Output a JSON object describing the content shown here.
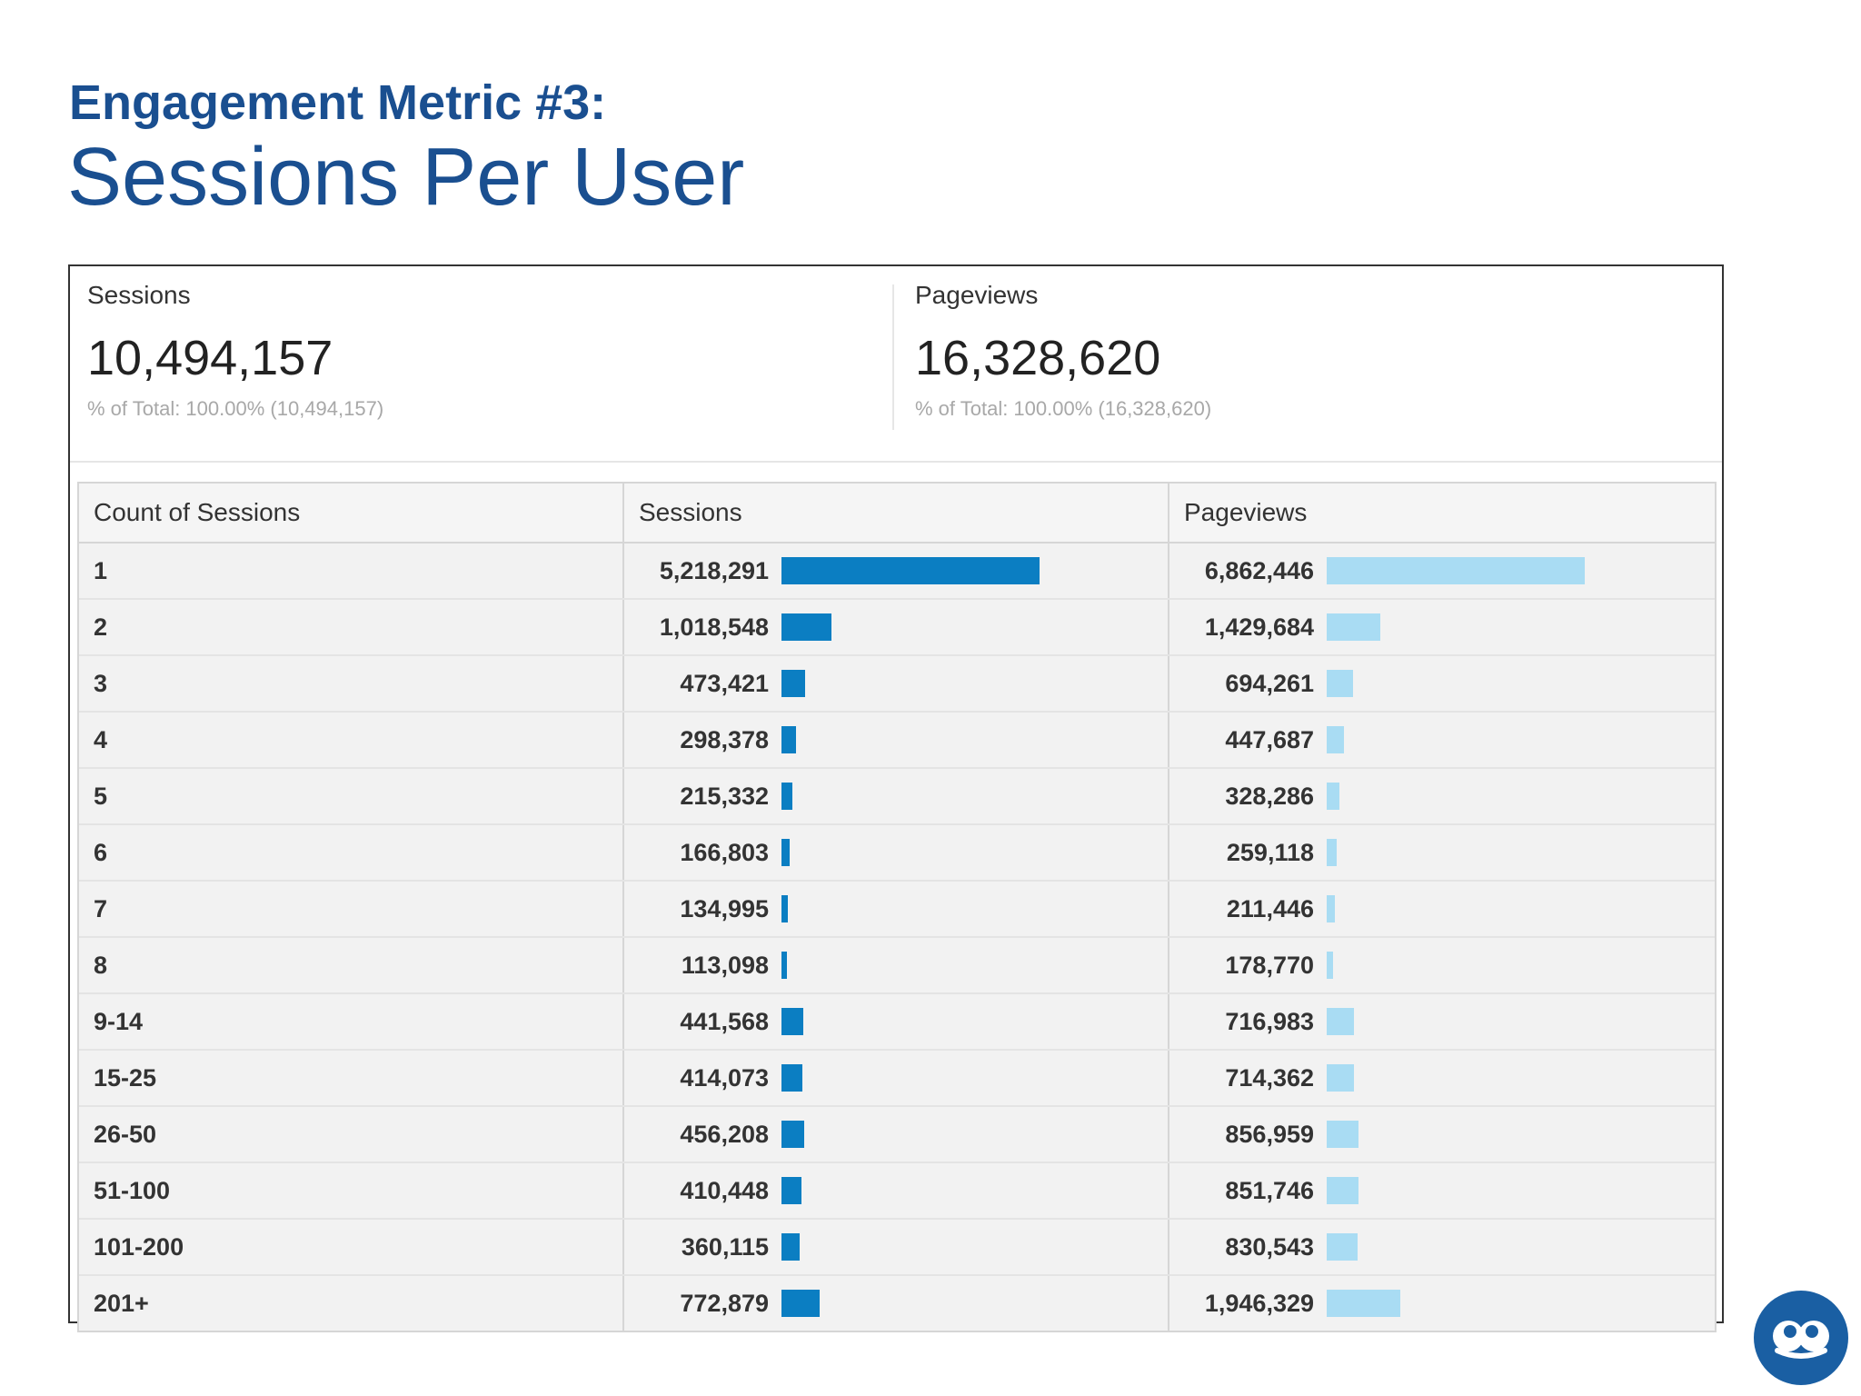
{
  "header": {
    "kicker": "Engagement Metric #3:",
    "title": "Sessions Per User"
  },
  "summary": {
    "sessions": {
      "label": "Sessions",
      "value": "10,494,157",
      "note": "% of Total: 100.00% (10,494,157)"
    },
    "pageviews": {
      "label": "Pageviews",
      "value": "16,328,620",
      "note": "% of Total: 100.00% (16,328,620)"
    }
  },
  "table": {
    "columns": [
      "Count of Sessions",
      "Sessions",
      "Pageviews"
    ],
    "rows": [
      {
        "count": "1",
        "sessions": "5,218,291",
        "pageviews": "6,862,446"
      },
      {
        "count": "2",
        "sessions": "1,018,548",
        "pageviews": "1,429,684"
      },
      {
        "count": "3",
        "sessions": "473,421",
        "pageviews": "694,261"
      },
      {
        "count": "4",
        "sessions": "298,378",
        "pageviews": "447,687"
      },
      {
        "count": "5",
        "sessions": "215,332",
        "pageviews": "328,286"
      },
      {
        "count": "6",
        "sessions": "166,803",
        "pageviews": "259,118"
      },
      {
        "count": "7",
        "sessions": "134,995",
        "pageviews": "211,446"
      },
      {
        "count": "8",
        "sessions": "113,098",
        "pageviews": "178,770"
      },
      {
        "count": "9-14",
        "sessions": "441,568",
        "pageviews": "716,983"
      },
      {
        "count": "15-25",
        "sessions": "414,073",
        "pageviews": "714,362"
      },
      {
        "count": "26-50",
        "sessions": "456,208",
        "pageviews": "856,959"
      },
      {
        "count": "51-100",
        "sessions": "410,448",
        "pageviews": "851,746"
      },
      {
        "count": "101-200",
        "sessions": "360,115",
        "pageviews": "830,543"
      },
      {
        "count": "201+",
        "sessions": "772,879",
        "pageviews": "1,946,329"
      }
    ]
  },
  "colors": {
    "title": "#1a4f90",
    "sessions_bar": "#0b7ec2",
    "pageviews_bar": "#a9dcf3",
    "logo": "#1a5fa3"
  },
  "logo": {
    "icon": "eyes-logo-icon"
  }
}
